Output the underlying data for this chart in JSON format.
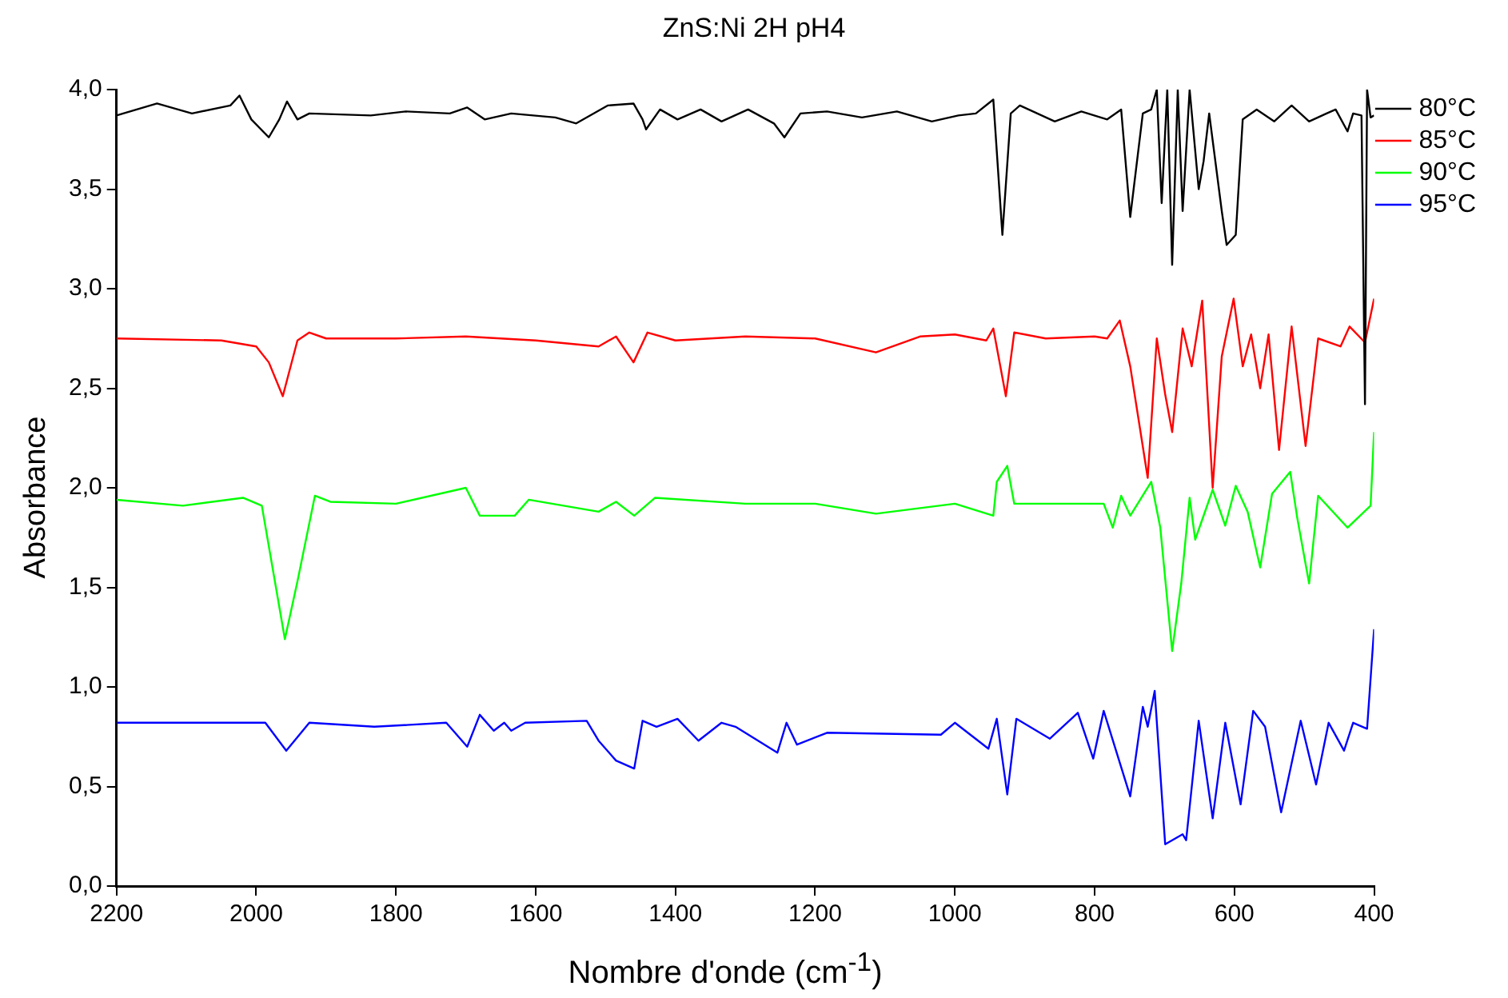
{
  "chart_data": {
    "type": "line",
    "title": "ZnS:Ni 2H pH4",
    "xlabel": "Nombre d'onde (cm$^{-1}$)",
    "ylabel": "Absorbance",
    "xlim": [
      2200,
      400
    ],
    "xticks": [
      2200,
      2000,
      1800,
      1600,
      1400,
      1200,
      1000,
      800,
      600,
      400
    ],
    "ylim": [
      0,
      4.0
    ],
    "yticks": [
      {
        "value": 0,
        "label": "0,0"
      },
      {
        "value": 0.5,
        "label": "0,5"
      },
      {
        "value": 1.0,
        "label": "1,0"
      },
      {
        "value": 1.5,
        "label": "1,5"
      },
      {
        "value": 2.0,
        "label": "2,0"
      },
      {
        "value": 2.5,
        "label": "2,5"
      },
      {
        "value": 3.0,
        "label": "3,0"
      },
      {
        "value": 3.5,
        "label": "3,5"
      },
      {
        "value": 4.0,
        "label": "4,0"
      }
    ],
    "grid": false,
    "legend": "right",
    "marker": "none",
    "line_style": "solid",
    "series": [
      {
        "name": "80°C",
        "color": "#000000",
        "x": [
          2200,
          2142,
          2092,
          2037,
          2024,
          2007,
          1982,
          1967,
          1956,
          1941,
          1924,
          1836,
          1786,
          1723,
          1698,
          1673,
          1635,
          1572,
          1542,
          1497,
          1460,
          1447,
          1442,
          1422,
          1397,
          1364,
          1334,
          1296,
          1259,
          1244,
          1221,
          1183,
          1133,
          1083,
          1033,
          995,
          970,
          945,
          932,
          920,
          907,
          882,
          857,
          819,
          782,
          762,
          749,
          731,
          719,
          711,
          704,
          696,
          689,
          681,
          674,
          664,
          651,
          644,
          636,
          618,
          611,
          598,
          588,
          568,
          543,
          518,
          493,
          468,
          455,
          438,
          430,
          418,
          413,
          410,
          405,
          400
        ],
        "values": [
          3.87,
          3.93,
          3.88,
          3.92,
          3.97,
          3.85,
          3.76,
          3.85,
          3.94,
          3.85,
          3.88,
          3.87,
          3.89,
          3.88,
          3.91,
          3.85,
          3.88,
          3.86,
          3.83,
          3.92,
          3.93,
          3.85,
          3.8,
          3.9,
          3.85,
          3.9,
          3.84,
          3.9,
          3.83,
          3.76,
          3.88,
          3.89,
          3.86,
          3.89,
          3.84,
          3.87,
          3.88,
          3.95,
          3.27,
          3.88,
          3.92,
          3.88,
          3.84,
          3.89,
          3.85,
          3.9,
          3.36,
          3.88,
          3.9,
          4.0,
          3.43,
          4.0,
          3.12,
          4.0,
          3.39,
          4.0,
          3.5,
          3.64,
          3.88,
          3.39,
          3.22,
          3.27,
          3.85,
          3.9,
          3.84,
          3.92,
          3.84,
          3.88,
          3.9,
          3.79,
          3.88,
          3.87,
          2.42,
          4.0,
          3.86,
          3.87
        ]
      },
      {
        "name": "85°C",
        "color": "#ff0000",
        "x": [
          2200,
          2050,
          2000,
          1982,
          1962,
          1941,
          1924,
          1900,
          1800,
          1700,
          1600,
          1510,
          1485,
          1460,
          1440,
          1400,
          1300,
          1200,
          1113,
          1050,
          1000,
          955,
          945,
          927,
          915,
          870,
          800,
          782,
          764,
          749,
          724,
          711,
          699,
          689,
          674,
          661,
          646,
          631,
          618,
          601,
          588,
          576,
          563,
          551,
          536,
          518,
          498,
          480,
          448,
          435,
          413,
          400
        ],
        "values": [
          2.75,
          2.74,
          2.71,
          2.63,
          2.46,
          2.74,
          2.78,
          2.75,
          2.75,
          2.76,
          2.74,
          2.71,
          2.76,
          2.63,
          2.78,
          2.74,
          2.76,
          2.75,
          2.68,
          2.76,
          2.77,
          2.74,
          2.8,
          2.46,
          2.78,
          2.75,
          2.76,
          2.75,
          2.84,
          2.61,
          2.05,
          2.75,
          2.47,
          2.28,
          2.8,
          2.61,
          2.94,
          2.0,
          2.66,
          2.95,
          2.61,
          2.77,
          2.5,
          2.77,
          2.19,
          2.81,
          2.21,
          2.75,
          2.71,
          2.81,
          2.73,
          2.95
        ]
      },
      {
        "name": "90°C",
        "color": "#00ff00",
        "x": [
          2200,
          2105,
          2019,
          1992,
          1959,
          1941,
          1916,
          1894,
          1800,
          1700,
          1680,
          1630,
          1610,
          1510,
          1485,
          1459,
          1429,
          1300,
          1200,
          1113,
          1000,
          945,
          940,
          925,
          915,
          800,
          787,
          774,
          762,
          749,
          719,
          706,
          689,
          676,
          664,
          656,
          631,
          613,
          598,
          581,
          563,
          546,
          520,
          510,
          493,
          480,
          438,
          405,
          400
        ],
        "values": [
          1.94,
          1.91,
          1.95,
          1.91,
          1.24,
          1.53,
          1.96,
          1.93,
          1.92,
          2.0,
          1.86,
          1.86,
          1.94,
          1.88,
          1.93,
          1.86,
          1.95,
          1.92,
          1.92,
          1.87,
          1.92,
          1.86,
          2.03,
          2.11,
          1.92,
          1.92,
          1.92,
          1.8,
          1.96,
          1.86,
          2.03,
          1.8,
          1.18,
          1.52,
          1.95,
          1.74,
          1.99,
          1.81,
          2.01,
          1.88,
          1.6,
          1.97,
          2.08,
          1.85,
          1.52,
          1.96,
          1.8,
          1.91,
          2.28
        ]
      },
      {
        "name": "95°C",
        "color": "#0000ff",
        "x": [
          2200,
          1987,
          1957,
          1924,
          1831,
          1728,
          1698,
          1680,
          1660,
          1645,
          1635,
          1615,
          1527,
          1510,
          1485,
          1459,
          1447,
          1427,
          1397,
          1367,
          1334,
          1314,
          1254,
          1241,
          1226,
          1183,
          1020,
          1000,
          952,
          940,
          925,
          912,
          864,
          824,
          802,
          787,
          749,
          731,
          724,
          714,
          699,
          674,
          669,
          651,
          631,
          613,
          591,
          573,
          556,
          533,
          505,
          483,
          465,
          443,
          430,
          410,
          400
        ],
        "values": [
          0.82,
          0.82,
          0.68,
          0.82,
          0.8,
          0.82,
          0.7,
          0.86,
          0.78,
          0.82,
          0.78,
          0.82,
          0.83,
          0.73,
          0.63,
          0.59,
          0.83,
          0.8,
          0.84,
          0.73,
          0.82,
          0.8,
          0.67,
          0.82,
          0.71,
          0.77,
          0.76,
          0.82,
          0.69,
          0.84,
          0.46,
          0.84,
          0.74,
          0.87,
          0.64,
          0.88,
          0.45,
          0.9,
          0.8,
          0.98,
          0.21,
          0.26,
          0.23,
          0.83,
          0.34,
          0.82,
          0.41,
          0.88,
          0.8,
          0.37,
          0.83,
          0.51,
          0.82,
          0.68,
          0.82,
          0.79,
          1.29
        ]
      }
    ]
  }
}
